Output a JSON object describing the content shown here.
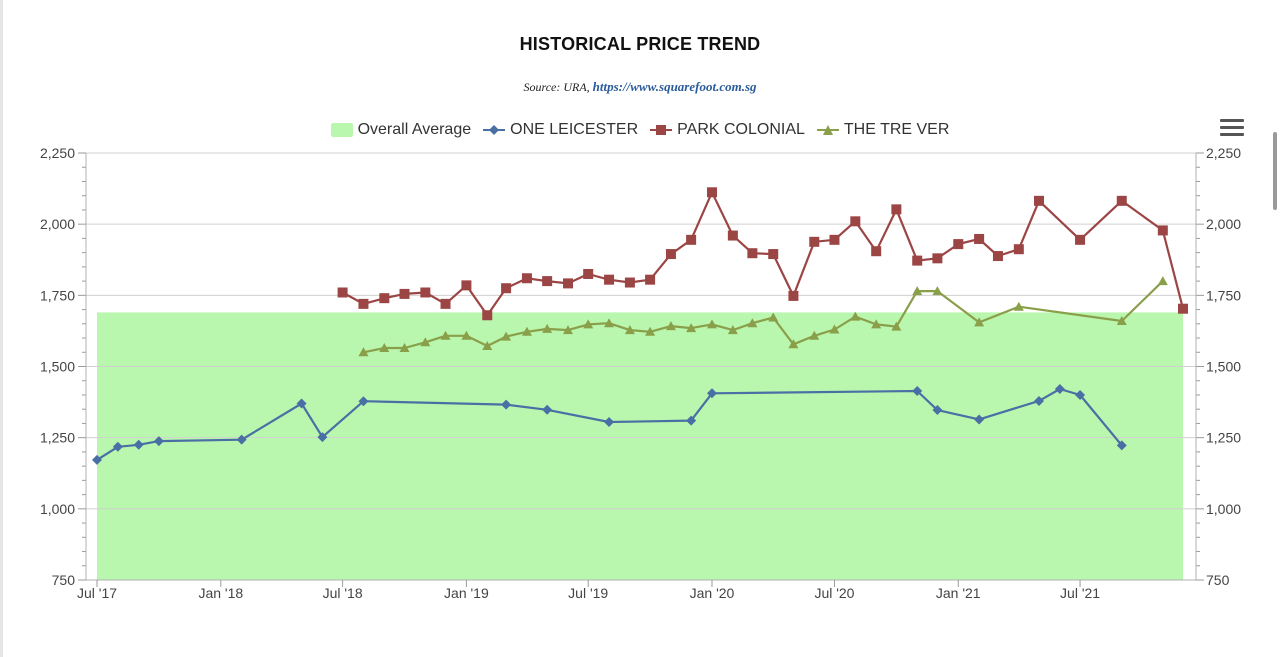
{
  "chart_data": {
    "type": "line",
    "title": "HISTORICAL PRICE TREND",
    "subtitle_prefix": "Source: URA, ",
    "subtitle_link": "https://www.squarefoot.com.sg",
    "ylim": [
      750,
      2250
    ],
    "yticks": [
      750,
      1000,
      1250,
      1500,
      1750,
      2000,
      2250
    ],
    "ytick_labels": [
      "750",
      "1,000",
      "1,250",
      "1,500",
      "1,750",
      "2,000",
      "2,250"
    ],
    "xlim": [
      "2017-07-01",
      "2021-12-01"
    ],
    "xticks": [
      "2017-07-01",
      "2018-01-01",
      "2018-07-01",
      "2019-01-01",
      "2019-07-01",
      "2020-01-01",
      "2020-07-01",
      "2021-01-01",
      "2021-07-01"
    ],
    "xtick_labels": [
      "Jul '17",
      "Jan '18",
      "Jul '18",
      "Jan '19",
      "Jul '19",
      "Jan '20",
      "Jul '20",
      "Jan '21",
      "Jul '21"
    ],
    "grid": true,
    "legend_position": "top-center",
    "area": {
      "name": "Overall Average",
      "color": "#b9f7ae",
      "value": 1690,
      "x_start": "2017-07-01",
      "x_end": "2021-12-01"
    },
    "series": [
      {
        "name": "ONE LEICESTER",
        "color": "#4a6fa5",
        "marker": "diamond",
        "points": [
          [
            "2017-07-01",
            1172
          ],
          [
            "2017-08-01",
            1218
          ],
          [
            "2017-09-01",
            1225
          ],
          [
            "2017-10-01",
            1238
          ],
          [
            "2018-02-01",
            1243
          ],
          [
            "2018-05-01",
            1370
          ],
          [
            "2018-06-01",
            1252
          ],
          [
            "2018-08-01",
            1378
          ],
          [
            "2019-03-01",
            1366
          ],
          [
            "2019-05-01",
            1348
          ],
          [
            "2019-08-01",
            1305
          ],
          [
            "2019-12-01",
            1310
          ],
          [
            "2020-01-01",
            1406
          ],
          [
            "2020-11-01",
            1414
          ],
          [
            "2020-12-01",
            1347
          ],
          [
            "2021-02-01",
            1314
          ],
          [
            "2021-05-01",
            1379
          ],
          [
            "2021-06-01",
            1421
          ],
          [
            "2021-07-01",
            1400
          ],
          [
            "2021-09-01",
            1223
          ]
        ]
      },
      {
        "name": "PARK COLONIAL",
        "color": "#9c4545",
        "marker": "square",
        "points": [
          [
            "2018-07-01",
            1760
          ],
          [
            "2018-08-01",
            1720
          ],
          [
            "2018-09-01",
            1740
          ],
          [
            "2018-10-01",
            1755
          ],
          [
            "2018-11-01",
            1760
          ],
          [
            "2018-12-01",
            1720
          ],
          [
            "2019-01-01",
            1785
          ],
          [
            "2019-02-01",
            1680
          ],
          [
            "2019-03-01",
            1775
          ],
          [
            "2019-04-01",
            1810
          ],
          [
            "2019-05-01",
            1800
          ],
          [
            "2019-06-01",
            1792
          ],
          [
            "2019-07-01",
            1825
          ],
          [
            "2019-08-01",
            1805
          ],
          [
            "2019-09-01",
            1795
          ],
          [
            "2019-10-01",
            1805
          ],
          [
            "2019-11-01",
            1895
          ],
          [
            "2019-12-01",
            1945
          ],
          [
            "2020-01-01",
            2112
          ],
          [
            "2020-02-01",
            1960
          ],
          [
            "2020-03-01",
            1898
          ],
          [
            "2020-04-01",
            1895
          ],
          [
            "2020-05-01",
            1748
          ],
          [
            "2020-06-01",
            1938
          ],
          [
            "2020-07-01",
            1945
          ],
          [
            "2020-08-01",
            2010
          ],
          [
            "2020-09-01",
            1905
          ],
          [
            "2020-10-01",
            2052
          ],
          [
            "2020-11-01",
            1872
          ],
          [
            "2020-12-01",
            1880
          ],
          [
            "2021-01-01",
            1930
          ],
          [
            "2021-02-01",
            1948
          ],
          [
            "2021-03-01",
            1888
          ],
          [
            "2021-04-01",
            1912
          ],
          [
            "2021-05-01",
            2082
          ],
          [
            "2021-07-01",
            1945
          ],
          [
            "2021-09-01",
            2082
          ],
          [
            "2021-11-01",
            1978
          ],
          [
            "2021-12-01",
            1703
          ]
        ]
      },
      {
        "name": "THE TRE VER",
        "color": "#8a9f4a",
        "marker": "triangle",
        "points": [
          [
            "2018-08-01",
            1550
          ],
          [
            "2018-09-01",
            1565
          ],
          [
            "2018-10-01",
            1565
          ],
          [
            "2018-11-01",
            1585
          ],
          [
            "2018-12-01",
            1608
          ],
          [
            "2019-01-01",
            1608
          ],
          [
            "2019-02-01",
            1572
          ],
          [
            "2019-03-01",
            1605
          ],
          [
            "2019-04-01",
            1622
          ],
          [
            "2019-05-01",
            1632
          ],
          [
            "2019-06-01",
            1628
          ],
          [
            "2019-07-01",
            1648
          ],
          [
            "2019-08-01",
            1652
          ],
          [
            "2019-09-01",
            1628
          ],
          [
            "2019-10-01",
            1622
          ],
          [
            "2019-11-01",
            1642
          ],
          [
            "2019-12-01",
            1635
          ],
          [
            "2020-01-01",
            1648
          ],
          [
            "2020-02-01",
            1628
          ],
          [
            "2020-03-01",
            1652
          ],
          [
            "2020-04-01",
            1672
          ],
          [
            "2020-05-01",
            1578
          ],
          [
            "2020-06-01",
            1608
          ],
          [
            "2020-07-01",
            1630
          ],
          [
            "2020-08-01",
            1675
          ],
          [
            "2020-09-01",
            1648
          ],
          [
            "2020-10-01",
            1640
          ],
          [
            "2020-11-01",
            1765
          ],
          [
            "2020-12-01",
            1765
          ],
          [
            "2021-02-01",
            1655
          ],
          [
            "2021-04-01",
            1710
          ],
          [
            "2021-09-01",
            1660
          ],
          [
            "2021-11-01",
            1800
          ]
        ]
      }
    ]
  },
  "ui": {
    "menu_icon": "hamburger-menu-icon"
  }
}
